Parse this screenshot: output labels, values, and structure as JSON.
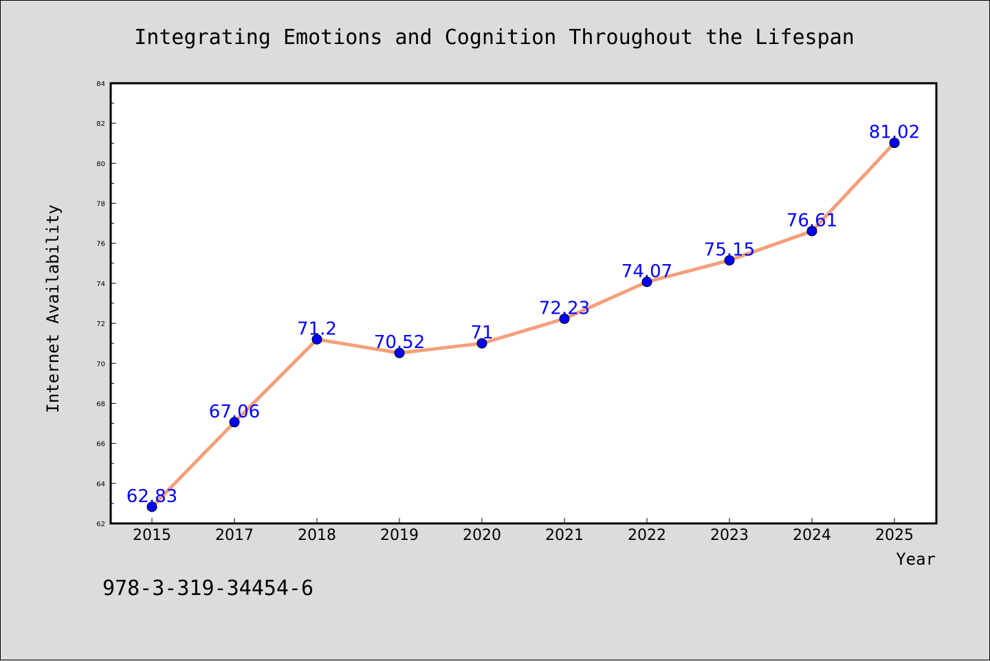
{
  "chart_data": {
    "type": "line",
    "title": "Integrating Emotions and Cognition Throughout the Lifespan",
    "xlabel": "Year",
    "ylabel": "Internet Availability",
    "categories": [
      "2015",
      "2017",
      "2018",
      "2019",
      "2020",
      "2021",
      "2022",
      "2023",
      "2024",
      "2025"
    ],
    "series": [
      {
        "values": [
          62.83,
          67.06,
          71.2,
          70.52,
          71,
          72.23,
          74.07,
          75.15,
          76.61,
          81.02
        ],
        "labels": [
          "62.83",
          "67.06",
          "71.2",
          "70.52",
          "71",
          "72.23",
          "74.07",
          "75.15",
          "76.61",
          "81.02"
        ],
        "line_color": "#f4a07a",
        "marker_color": "#0000ff"
      }
    ],
    "ylim": [
      62,
      84
    ],
    "yticks": [
      "62",
      "64",
      "66",
      "68",
      "70",
      "72",
      "74",
      "76",
      "78",
      "80",
      "82",
      "84"
    ],
    "grid": false,
    "legend": "none"
  },
  "footer": {
    "isbn": "978-3-319-34454-6"
  },
  "colors": {
    "background": "#dcdcdc",
    "plot_background": "#ffffff"
  }
}
